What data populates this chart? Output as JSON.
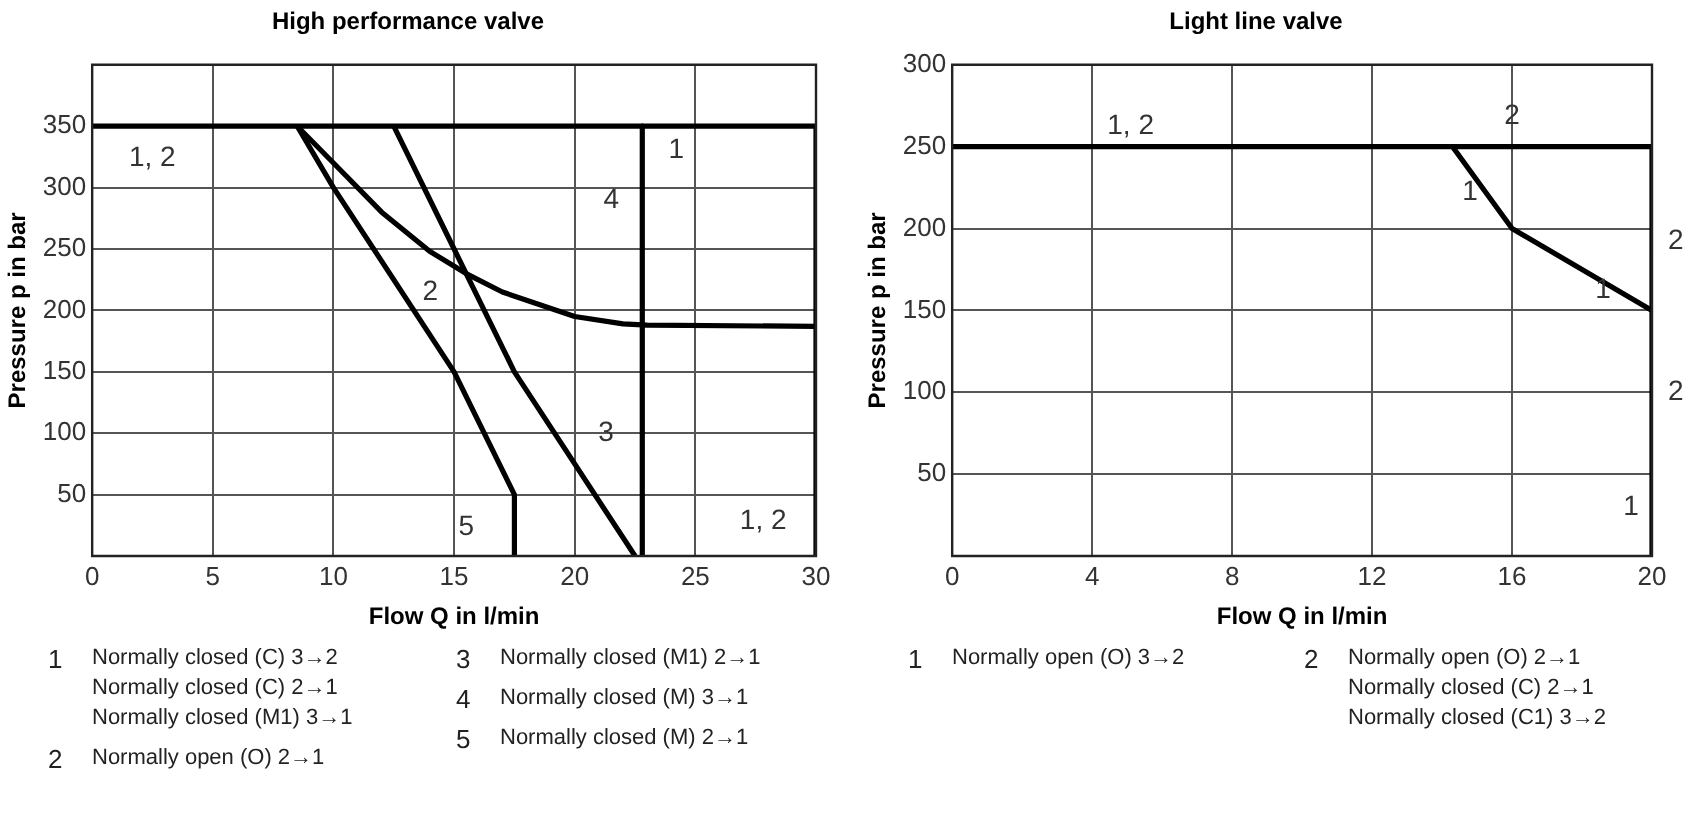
{
  "chart_data": [
    {
      "type": "line",
      "title": "High performance valve",
      "xlabel": "Flow Q in l/min",
      "ylabel": "Pressure p in bar",
      "xlim": [
        0,
        30
      ],
      "ylim": [
        0,
        400
      ],
      "xticks": [
        0,
        5,
        10,
        15,
        20,
        25,
        30
      ],
      "yticks": [
        {
          "value": 0,
          "label": null
        },
        50,
        100,
        150,
        200,
        250,
        300,
        350
      ],
      "grid": true,
      "series": [
        {
          "color": "#000000",
          "x": [
            0,
            30,
            30
          ],
          "values": [
            350,
            350,
            0
          ]
        },
        {
          "color": "#000000",
          "x": [
            22.8,
            22.8
          ],
          "values": [
            350,
            0
          ]
        },
        {
          "color": "#000000",
          "x": [
            8.5,
            10,
            12,
            14,
            15.5,
            17,
            20,
            22,
            23,
            30
          ],
          "values": [
            350,
            320,
            280,
            248,
            230,
            215,
            195,
            189,
            188,
            187
          ]
        },
        {
          "color": "#000000",
          "x": [
            12.5,
            15,
            17.5,
            20,
            22.5
          ],
          "values": [
            350,
            250,
            150,
            75,
            0
          ]
        },
        {
          "color": "#000000",
          "x": [
            8.5,
            10,
            15,
            17.5,
            17.5
          ],
          "values": [
            350,
            300,
            150,
            50,
            0
          ]
        }
      ],
      "annotations": [
        "1, 2",
        "1",
        "4",
        "2",
        "3",
        "5",
        "1, 2",
        "1\tNormally closed (C)  3→2\nNormally closed (C)  2→1\nNormally closed (M1) 3→1",
        "2\tNormally open (O) 2→1",
        "3\tNormally closed (M1) 2→1",
        "4\tNormally closed (M)  3→1",
        "5\tNormally closed (M)  2→1"
      ]
    },
    {
      "type": "line",
      "title": "Light line valve",
      "xlabel": "Flow Q in l/min",
      "ylabel": "Pressure p in bar",
      "xlim": [
        0,
        20
      ],
      "ylim": [
        0,
        300
      ],
      "xticks": [
        0,
        4,
        8,
        12,
        16,
        20
      ],
      "yticks": [
        {
          "value": 0,
          "label": null
        },
        50,
        100,
        150,
        200,
        250,
        300
      ],
      "grid": true,
      "series": [
        {
          "color": "#000000",
          "x": [
            0,
            20,
            20
          ],
          "values": [
            250,
            250,
            0
          ]
        },
        {
          "color": "#000000",
          "x": [
            14.3,
            16,
            20
          ],
          "values": [
            250,
            200,
            150
          ]
        }
      ],
      "annotations": [
        "1, 2",
        "2",
        "1",
        "2",
        "1",
        "2",
        "1",
        "1\tNormally open (O) 3→2",
        "2\tNormally open   (O)  2→1\nNormally closed (C)  2→1\nNormally closed (C1) 3→2"
      ]
    }
  ]
}
